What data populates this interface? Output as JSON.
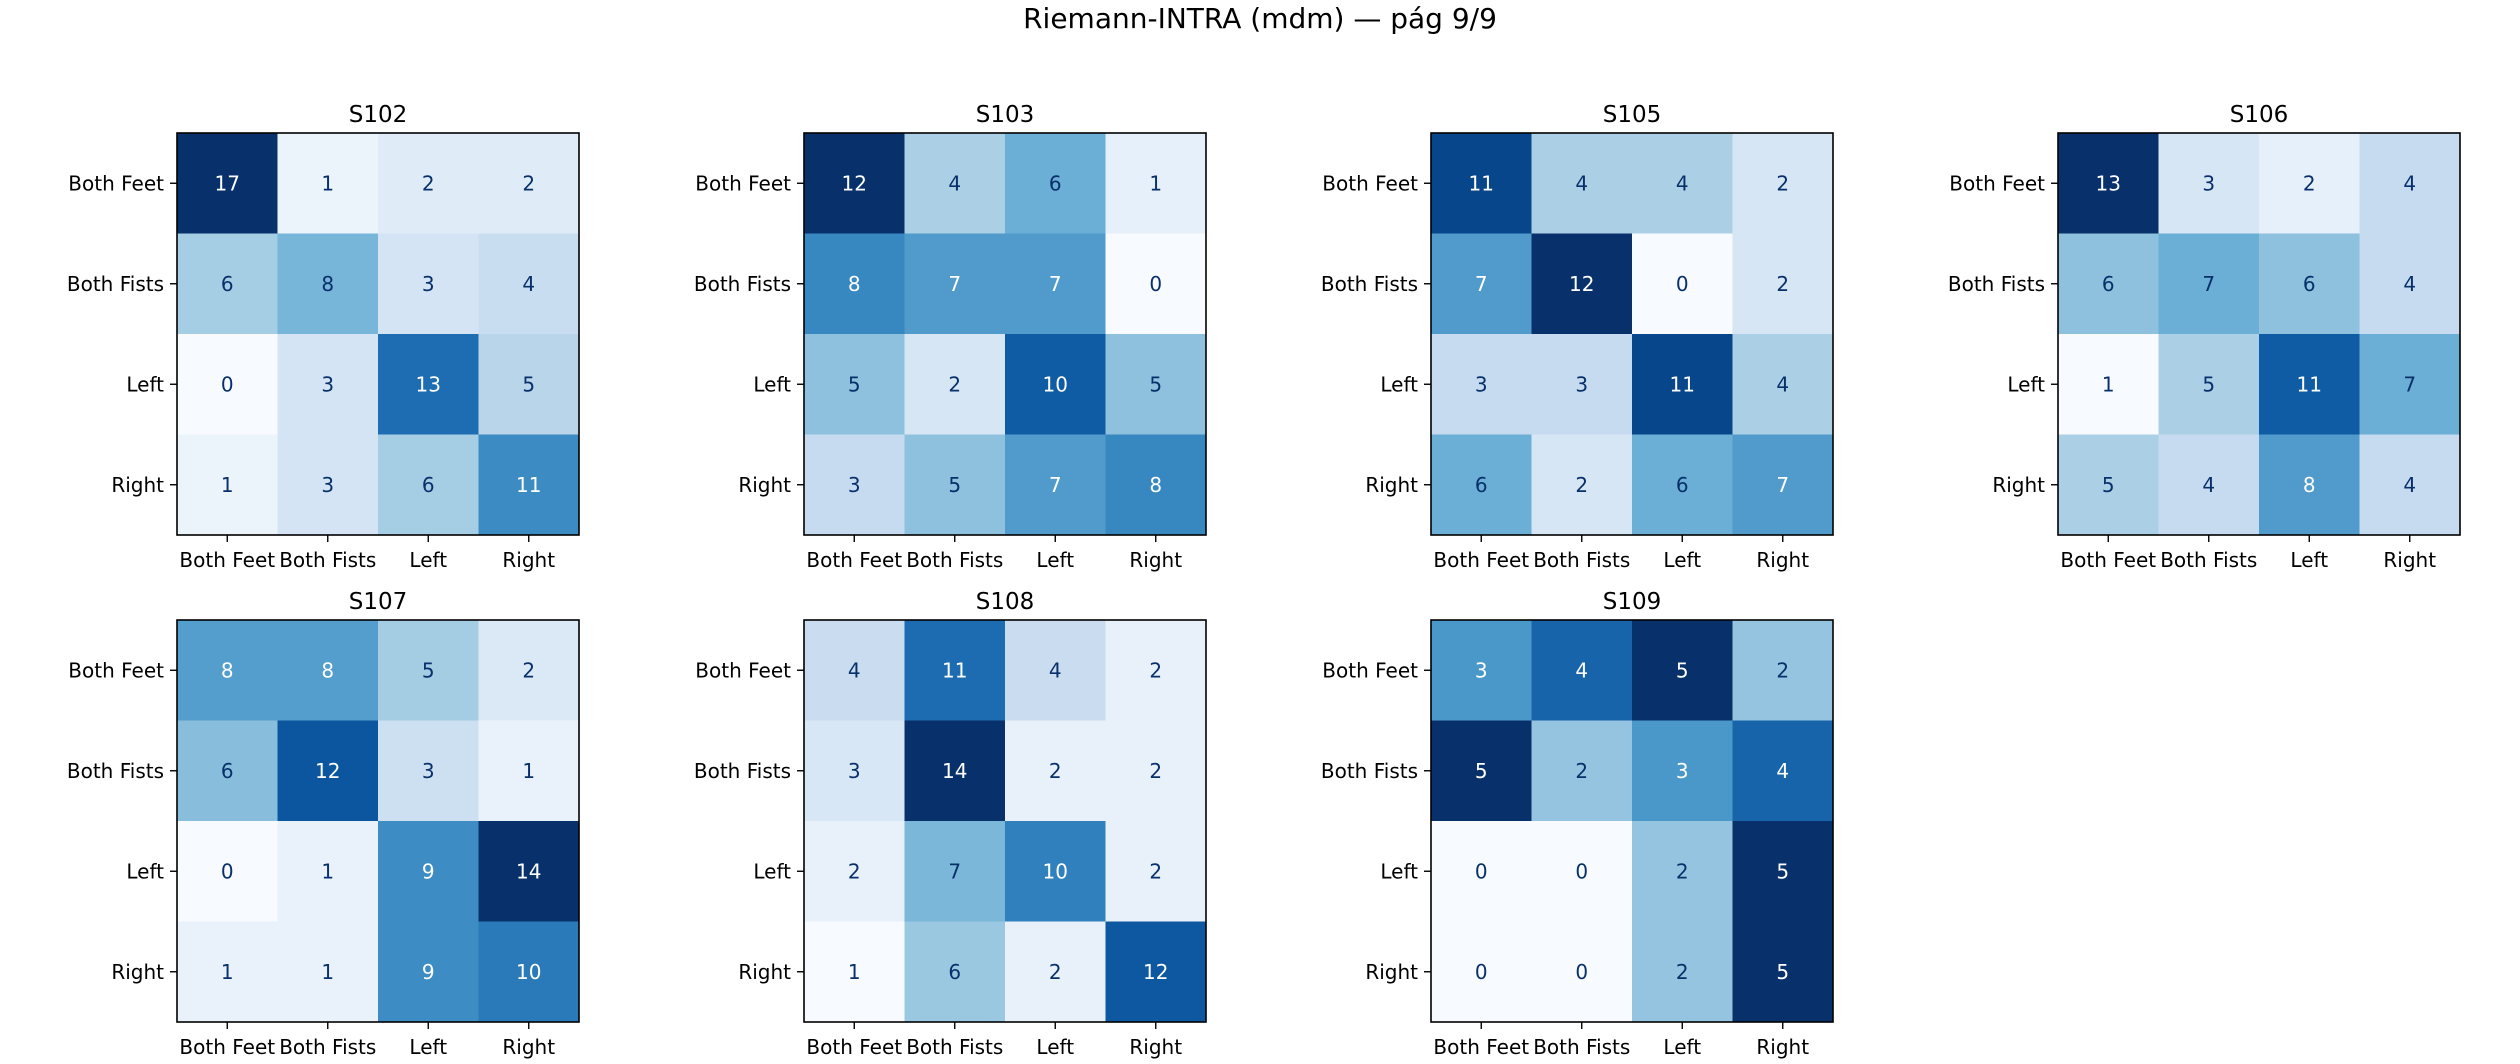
{
  "figure": {
    "title": "Riemann-INTRA (mdm) — pág 9/9"
  },
  "colors": {
    "colormap": "Blues",
    "text_light": "#ffffff",
    "text_dark": "#08306b",
    "axes_edge": "#000000"
  },
  "chart_data": [
    {
      "type": "heatmap",
      "title": "S102",
      "x_categories": [
        "Both Feet",
        "Both Fists",
        "Left",
        "Right"
      ],
      "y_categories": [
        "Both Feet",
        "Both Fists",
        "Left",
        "Right"
      ],
      "values": [
        [
          17,
          1,
          2,
          2
        ],
        [
          6,
          8,
          3,
          4
        ],
        [
          0,
          3,
          13,
          5
        ],
        [
          1,
          3,
          6,
          11
        ]
      ]
    },
    {
      "type": "heatmap",
      "title": "S103",
      "x_categories": [
        "Both Feet",
        "Both Fists",
        "Left",
        "Right"
      ],
      "y_categories": [
        "Both Feet",
        "Both Fists",
        "Left",
        "Right"
      ],
      "values": [
        [
          12,
          4,
          6,
          1
        ],
        [
          8,
          7,
          7,
          0
        ],
        [
          5,
          2,
          10,
          5
        ],
        [
          3,
          5,
          7,
          8
        ]
      ]
    },
    {
      "type": "heatmap",
      "title": "S105",
      "x_categories": [
        "Both Feet",
        "Both Fists",
        "Left",
        "Right"
      ],
      "y_categories": [
        "Both Feet",
        "Both Fists",
        "Left",
        "Right"
      ],
      "values": [
        [
          11,
          4,
          4,
          2
        ],
        [
          7,
          12,
          0,
          2
        ],
        [
          3,
          3,
          11,
          4
        ],
        [
          6,
          2,
          6,
          7
        ]
      ]
    },
    {
      "type": "heatmap",
      "title": "S106",
      "x_categories": [
        "Both Feet",
        "Both Fists",
        "Left",
        "Right"
      ],
      "y_categories": [
        "Both Feet",
        "Both Fists",
        "Left",
        "Right"
      ],
      "values": [
        [
          13,
          3,
          2,
          4
        ],
        [
          6,
          7,
          6,
          4
        ],
        [
          1,
          5,
          11,
          7
        ],
        [
          5,
          4,
          8,
          4
        ]
      ]
    },
    {
      "type": "heatmap",
      "title": "S107",
      "x_categories": [
        "Both Feet",
        "Both Fists",
        "Left",
        "Right"
      ],
      "y_categories": [
        "Both Feet",
        "Both Fists",
        "Left",
        "Right"
      ],
      "values": [
        [
          8,
          8,
          5,
          2
        ],
        [
          6,
          12,
          3,
          1
        ],
        [
          0,
          1,
          9,
          14
        ],
        [
          1,
          1,
          9,
          10
        ]
      ]
    },
    {
      "type": "heatmap",
      "title": "S108",
      "x_categories": [
        "Both Feet",
        "Both Fists",
        "Left",
        "Right"
      ],
      "y_categories": [
        "Both Feet",
        "Both Fists",
        "Left",
        "Right"
      ],
      "values": [
        [
          4,
          11,
          4,
          2
        ],
        [
          3,
          14,
          2,
          2
        ],
        [
          2,
          7,
          10,
          2
        ],
        [
          1,
          6,
          2,
          12
        ]
      ]
    },
    {
      "type": "heatmap",
      "title": "S109",
      "x_categories": [
        "Both Feet",
        "Both Fists",
        "Left",
        "Right"
      ],
      "y_categories": [
        "Both Feet",
        "Both Fists",
        "Left",
        "Right"
      ],
      "values": [
        [
          3,
          4,
          5,
          2
        ],
        [
          5,
          2,
          3,
          4
        ],
        [
          0,
          0,
          2,
          5
        ],
        [
          0,
          0,
          2,
          5
        ]
      ]
    }
  ]
}
